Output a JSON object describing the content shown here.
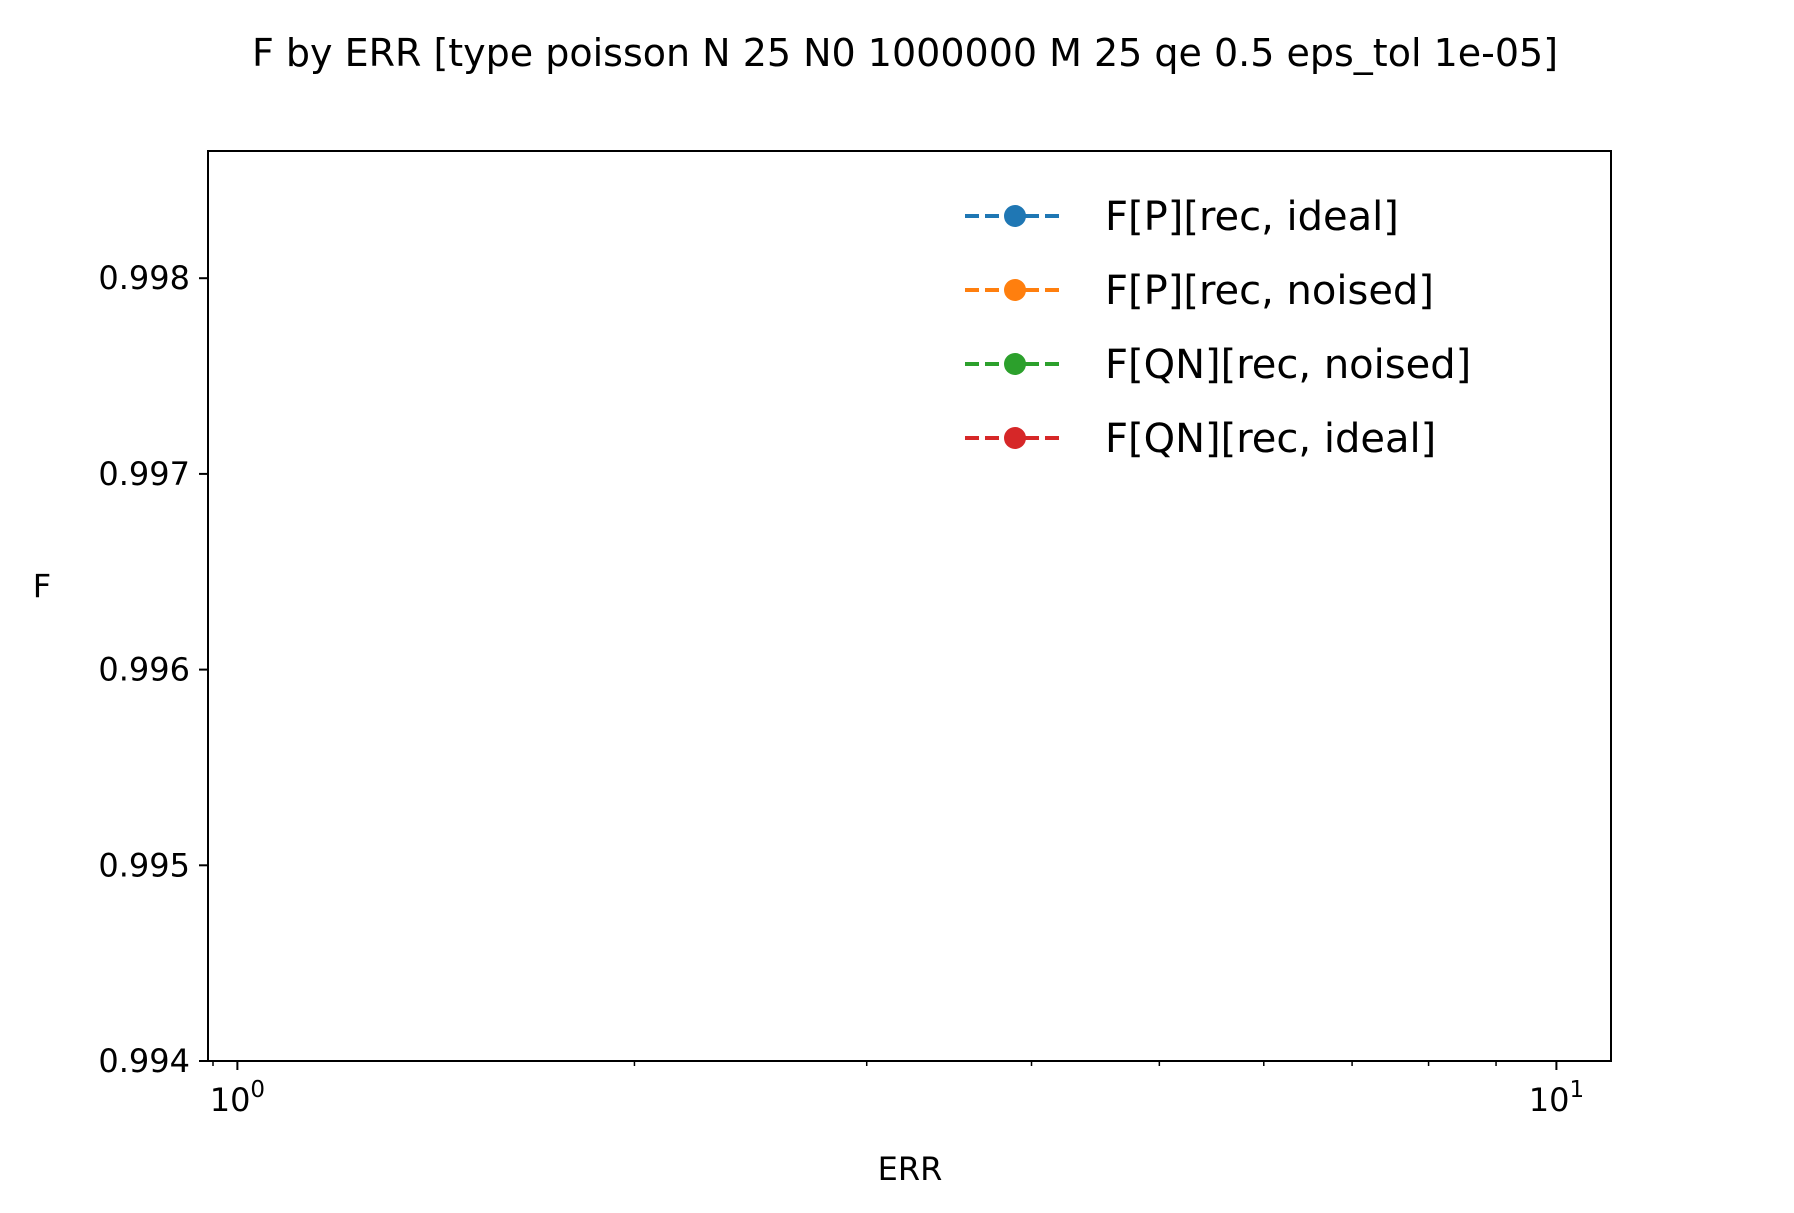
{
  "chart_data": {
    "type": "line",
    "title": "F by ERR [type poisson N 25 N0 1000000 M 25 qe 0.5 eps_tol 1e-05]",
    "xlabel": "ERR",
    "ylabel": "F",
    "xscale": "log",
    "xlim": [
      0.95,
      11
    ],
    "ylim": [
      0.994,
      0.99865
    ],
    "xticks": [
      {
        "value": 1,
        "base": "10",
        "exp": "0"
      },
      {
        "value": 10,
        "base": "10",
        "exp": "1"
      }
    ],
    "yticks": [
      {
        "value": 0.994,
        "label": "0.994"
      },
      {
        "value": 0.995,
        "label": "0.995"
      },
      {
        "value": 0.996,
        "label": "0.996"
      },
      {
        "value": 0.997,
        "label": "0.997"
      },
      {
        "value": 0.998,
        "label": "0.998"
      }
    ],
    "grid": false,
    "legend_position": "top-right",
    "series": [
      {
        "name": "F[P][rec, ideal]",
        "color": "#1f77b4",
        "linestyle": "dashed",
        "marker": "circle",
        "x": [],
        "y": []
      },
      {
        "name": "F[P][rec, noised]",
        "color": "#ff7f0e",
        "linestyle": "dashed",
        "marker": "circle",
        "x": [],
        "y": []
      },
      {
        "name": "F[QN][rec, noised]",
        "color": "#2ca02c",
        "linestyle": "dashed",
        "marker": "circle",
        "x": [],
        "y": []
      },
      {
        "name": "F[QN][rec, ideal]",
        "color": "#d62728",
        "linestyle": "dashed",
        "marker": "circle",
        "x": [],
        "y": []
      }
    ]
  }
}
